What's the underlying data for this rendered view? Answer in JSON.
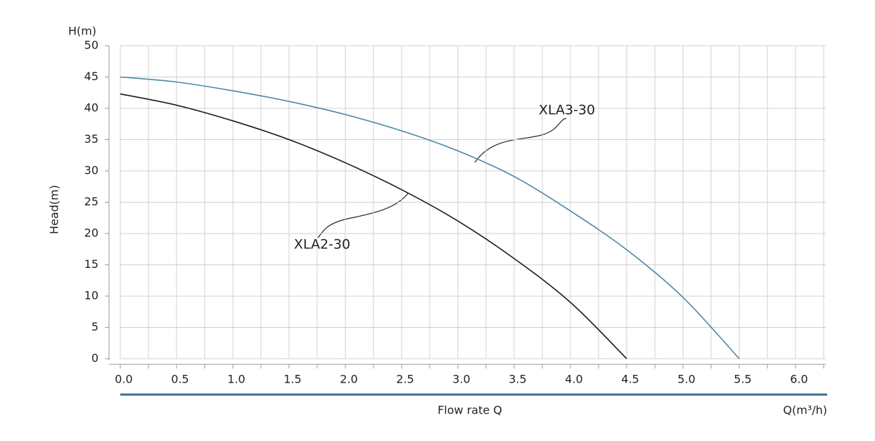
{
  "chart_data": {
    "type": "line",
    "y_label_top": "H(m)",
    "y_label": "Head(m)",
    "x_label": "Flow rate Q",
    "x_unit_label": "Q(m³/h)",
    "xlim": [
      0,
      6.25
    ],
    "xticks": [
      {
        "value": 0,
        "label": "0.0"
      },
      0.5,
      {
        "value": 1,
        "label": "1.0"
      },
      1.5,
      {
        "value": 2,
        "label": "2.0"
      },
      2.5,
      {
        "value": 3,
        "label": "3.0"
      },
      3.5,
      {
        "value": 4,
        "label": "4.0"
      },
      4.5,
      {
        "value": 5,
        "label": "5.0"
      },
      5.5,
      {
        "value": 6,
        "label": "6.0"
      }
    ],
    "xminorticks": [
      0.25,
      0.75,
      1.25,
      1.75,
      2.25,
      2.75,
      3.25,
      3.75,
      4.25,
      4.75,
      5.25,
      5.75,
      6.25
    ],
    "ylim": [
      0,
      50
    ],
    "yticks": [
      0,
      5,
      10,
      15,
      20,
      25,
      30,
      35,
      40,
      45,
      50
    ],
    "grid": true,
    "series": [
      {
        "name": "XLA3-30",
        "color": "#4a87a8",
        "x": [
          0,
          0.5,
          1,
          1.5,
          2,
          2.5,
          3,
          3.5,
          4,
          4.5,
          5,
          5.5
        ],
        "values": [
          45,
          44.2,
          42.8,
          41.1,
          39,
          36.4,
          33.2,
          29.1,
          23.6,
          17.4,
          9.8,
          0
        ]
      },
      {
        "name": "XLA2-30",
        "color": "#1a1a1a",
        "x": [
          0,
          0.5,
          1,
          1.5,
          2,
          2.5,
          3,
          3.5,
          4,
          4.5
        ],
        "values": [
          42.3,
          40.5,
          38,
          35,
          31.3,
          27,
          22,
          16,
          9,
          0
        ]
      }
    ]
  }
}
